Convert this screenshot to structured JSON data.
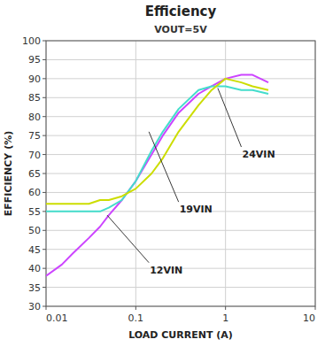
{
  "chart_data": {
    "type": "line",
    "title": "Efficiency",
    "subtitle": "VOUT=5V",
    "x_label": "LOAD CURRENT (A)",
    "y_label": "EFFICIENCY (%)",
    "log": "x",
    "grid": true,
    "xlim": [
      0.01,
      10
    ],
    "ylim": [
      30,
      100
    ],
    "xticks": [
      0.01,
      0.1,
      1,
      10
    ],
    "yticks": [
      30,
      35,
      40,
      45,
      50,
      55,
      60,
      65,
      70,
      75,
      80,
      85,
      90,
      95,
      100
    ],
    "x": [
      0.01,
      0.015,
      0.02,
      0.03,
      0.04,
      0.05,
      0.07,
      0.1,
      0.15,
      0.2,
      0.3,
      0.5,
      0.7,
      1.0,
      1.5,
      2.0,
      3.0
    ],
    "series": [
      {
        "color": "#cc44ff",
        "values": [
          38,
          41,
          44,
          48,
          51,
          54,
          58,
          63,
          70,
          75,
          81,
          86,
          88,
          90,
          91,
          91,
          89
        ]
      },
      {
        "color": "#44ddcc",
        "values": [
          55,
          55,
          55,
          55,
          55,
          56,
          58,
          63,
          71,
          76,
          82,
          87,
          88,
          88,
          87,
          87,
          86
        ]
      },
      {
        "color": "#ccdd00",
        "values": [
          57,
          57,
          57,
          57,
          58,
          58,
          59,
          61,
          65,
          69,
          76,
          83,
          87,
          90,
          89,
          88,
          87
        ]
      }
    ],
    "annotations": [
      {
        "text": "12VIN",
        "x": 0.14,
        "y": 41.5,
        "target_x": 0.048,
        "target_y": 54
      },
      {
        "text": "19VIN",
        "x": 0.3,
        "y": 57.5,
        "target_x": 0.14,
        "target_y": 76
      },
      {
        "text": "24VIN",
        "x": 1.5,
        "y": 72,
        "target_x": 0.82,
        "target_y": 87.5
      }
    ]
  }
}
